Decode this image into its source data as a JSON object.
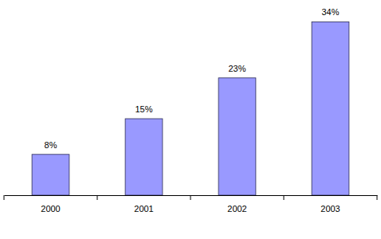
{
  "chart_data": {
    "type": "bar",
    "categories": [
      "2000",
      "2001",
      "2002",
      "2003"
    ],
    "values": [
      8,
      15,
      23,
      34
    ],
    "value_labels": [
      "8%",
      "15%",
      "23%",
      "34%"
    ],
    "color": "#9999ff",
    "ylim": [
      0,
      35
    ],
    "data_labels": true,
    "tick_labels": "x"
  }
}
